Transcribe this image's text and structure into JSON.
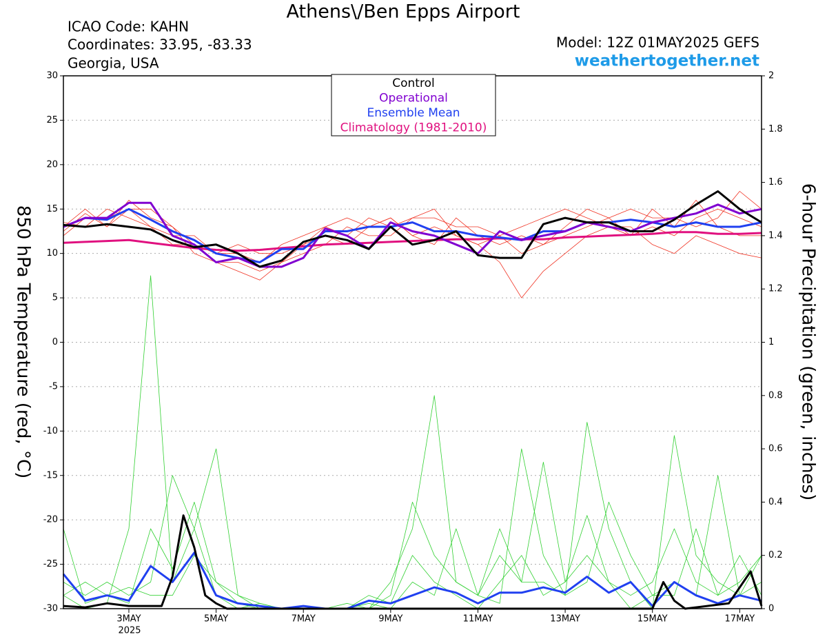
{
  "chart_data": {
    "type": "line",
    "title": "Athens\\/Ben Epps Airport",
    "info_left": [
      "ICAO Code: KAHN",
      "Coordinates: 33.95, -83.33",
      "Georgia, USA"
    ],
    "model": "Model: 12Z 01MAY2025 GEFS",
    "site": "weathertogether.net",
    "ylabel": "850 hPa Temperature (red, °C)",
    "y2label": "6-hour Precipitation (green, inches)",
    "year_label": "2025",
    "x": [
      0.5,
      1,
      1.5,
      2,
      2.5,
      3,
      3.5,
      4,
      4.5,
      5,
      5.5,
      6,
      6.5,
      7,
      7.5,
      8,
      8.5,
      9,
      9.5,
      10,
      10.5,
      11,
      11.5,
      12,
      12.5,
      13,
      13.5,
      14,
      14.5,
      15,
      15.5,
      16,
      16.5
    ],
    "xlim": [
      0.5,
      16.5
    ],
    "xticks": [
      {
        "value": 2,
        "label": "3MAY"
      },
      {
        "value": 4,
        "label": "5MAY"
      },
      {
        "value": 6,
        "label": "7MAY"
      },
      {
        "value": 8,
        "label": "9MAY"
      },
      {
        "value": 10,
        "label": "11MAY"
      },
      {
        "value": 12,
        "label": "13MAY"
      },
      {
        "value": 14,
        "label": "15MAY"
      },
      {
        "value": 16,
        "label": "17MAY"
      }
    ],
    "ylim": [
      -30,
      30
    ],
    "yticks": [
      30,
      25,
      20,
      15,
      10,
      5,
      0,
      -5,
      -10,
      -15,
      -20,
      -25,
      -30
    ],
    "y2lim": [
      0,
      2
    ],
    "y2ticks": [
      2,
      1.8,
      1.6,
      1.4,
      1.2,
      1,
      0.8,
      0.6,
      0.4,
      0.2,
      0
    ],
    "grid": true,
    "legend": "top",
    "series": [
      {
        "name": "Control",
        "color": "#000000",
        "values": [
          13.2,
          13.0,
          13.3,
          13.0,
          12.7,
          11.5,
          10.7,
          11.0,
          10.0,
          8.5,
          9.2,
          11.3,
          12.0,
          11.5,
          10.5,
          13.0,
          11.0,
          11.5,
          12.5,
          9.8,
          9.5,
          9.5,
          13.3,
          14.0,
          13.5,
          13.5,
          12.5,
          12.5,
          13.8,
          15.5,
          17.0,
          15.0,
          13.5
        ]
      },
      {
        "name": "Operational",
        "color": "#8000d0",
        "values": [
          13.0,
          14.0,
          14.0,
          15.7,
          15.7,
          12.0,
          11.0,
          9.0,
          9.5,
          8.5,
          8.5,
          9.5,
          12.8,
          12.0,
          10.5,
          13.5,
          12.5,
          12.0,
          11.0,
          10.0,
          12.5,
          11.5,
          12.0,
          12.5,
          13.5,
          13.0,
          12.5,
          13.5,
          14.0,
          14.5,
          15.5,
          14.5,
          15.0
        ]
      },
      {
        "name": "Ensemble Mean",
        "color": "#2040f0",
        "values": [
          13.0,
          14.0,
          13.8,
          15.0,
          13.8,
          12.5,
          11.5,
          10.0,
          9.5,
          9.0,
          10.5,
          10.5,
          12.5,
          12.5,
          13.0,
          13.0,
          13.5,
          12.5,
          12.5,
          12.0,
          11.8,
          11.5,
          12.5,
          12.5,
          13.5,
          13.5,
          13.8,
          13.5,
          13.0,
          13.5,
          13.0,
          13.0,
          13.5
        ]
      },
      {
        "name": "Climatology (1981-2010)",
        "color": "#e0107f",
        "values": [
          11.2,
          11.3,
          11.4,
          11.5,
          11.2,
          10.9,
          10.6,
          10.4,
          10.3,
          10.4,
          10.6,
          10.8,
          11.0,
          11.1,
          11.2,
          11.3,
          11.4,
          11.5,
          11.6,
          11.6,
          11.7,
          11.6,
          11.6,
          11.8,
          11.9,
          12.0,
          12.1,
          12.2,
          12.4,
          12.4,
          12.2,
          12.2,
          12.3
        ]
      }
    ],
    "precip_series": [
      {
        "color": "#000000",
        "axis": "y2",
        "x": [
          0.5,
          1,
          1.5,
          2,
          2.5,
          2.75,
          3,
          3.25,
          3.5,
          3.75,
          4,
          4.25,
          14,
          14.25,
          14.5,
          14.75,
          15.75,
          16.25,
          16.5
        ],
        "values": [
          0.01,
          0.005,
          0.02,
          0.01,
          0.01,
          0.01,
          0.12,
          0.35,
          0.23,
          0.05,
          0.02,
          0,
          0,
          0.1,
          0.03,
          0,
          0.02,
          0.14,
          0.01
        ]
      },
      {
        "color": "#2040f0",
        "axis": "y2",
        "values": [
          0.13,
          0.03,
          0.05,
          0.03,
          0.16,
          0.1,
          0.21,
          0.05,
          0.02,
          0.01,
          0,
          0.01,
          0,
          0,
          0.03,
          0.02,
          0.05,
          0.08,
          0.06,
          0.02,
          0.06,
          0.06,
          0.08,
          0.06,
          0.12,
          0.06,
          0.1,
          0.01,
          0.1,
          0.05,
          0.02,
          0.05,
          0.03
        ]
      }
    ],
    "member_color": "#f03020",
    "members": [
      [
        12.5,
        14.5,
        13,
        16,
        14,
        13,
        10,
        9,
        9,
        8,
        9,
        11,
        13,
        14,
        13,
        14,
        12,
        13,
        12,
        11,
        12,
        10,
        11,
        12,
        13,
        14,
        15,
        14,
        14,
        13,
        14,
        17,
        15
      ],
      [
        13.5,
        13,
        15,
        14,
        13,
        12,
        12,
        10,
        10,
        9,
        11,
        12,
        13,
        12,
        14,
        13,
        14,
        14,
        13,
        13,
        12,
        13,
        14,
        15,
        14,
        13,
        12,
        13,
        12,
        14,
        15,
        14,
        13
      ],
      [
        12,
        14,
        14,
        15,
        13,
        11,
        11,
        9,
        8,
        7,
        9,
        10,
        11,
        13,
        12,
        12,
        14,
        15,
        12,
        11,
        9,
        5,
        8,
        10,
        12,
        13,
        13,
        11,
        10,
        12,
        11,
        10,
        9.5
      ],
      [
        13,
        15,
        13,
        15,
        15,
        13,
        11,
        10,
        11,
        10,
        10,
        11,
        12,
        11,
        13,
        14,
        12,
        11,
        14,
        12,
        11,
        12,
        11,
        13,
        15,
        14,
        12,
        15,
        13,
        16,
        13,
        12,
        12
      ]
    ],
    "precip_member_color": "#30d030",
    "precip_members": [
      [
        0.05,
        0,
        0.02,
        0.3,
        1.25,
        0.1,
        0.3,
        0.05,
        0,
        0.02,
        0,
        0,
        0,
        0,
        0.05,
        0.02,
        0.2,
        0.1,
        0.05,
        0,
        0.1,
        0.2,
        0.05,
        0.1,
        0.35,
        0.1,
        0.05,
        0.1,
        0.3,
        0.1,
        0.05,
        0.2,
        0.05
      ],
      [
        0.1,
        0.05,
        0.1,
        0.05,
        0.1,
        0.5,
        0.3,
        0.6,
        0.05,
        0,
        0,
        0,
        0,
        0.02,
        0,
        0.1,
        0.3,
        0.8,
        0.1,
        0.05,
        0.2,
        0.1,
        0.55,
        0.1,
        0.2,
        0.1,
        0,
        0.05,
        0.05,
        0.3,
        0.05,
        0.1,
        0.2
      ],
      [
        0.3,
        0.02,
        0.05,
        0.08,
        0.05,
        0.05,
        0.2,
        0.1,
        0.02,
        0,
        0,
        0,
        0,
        0,
        0,
        0.05,
        0.4,
        0.2,
        0.1,
        0.05,
        0.3,
        0.1,
        0.1,
        0.05,
        0.7,
        0.3,
        0.1,
        0,
        0.65,
        0.2,
        0.1,
        0.05,
        0.1
      ],
      [
        0.05,
        0.1,
        0.05,
        0.02,
        0.3,
        0.15,
        0.4,
        0.1,
        0.05,
        0.02,
        0,
        0,
        0,
        0,
        0.02,
        0,
        0.1,
        0.05,
        0.3,
        0.05,
        0.02,
        0.6,
        0.2,
        0.05,
        0.1,
        0.4,
        0.2,
        0.05,
        0.1,
        0.05,
        0.5,
        0.05,
        0.2
      ]
    ]
  }
}
